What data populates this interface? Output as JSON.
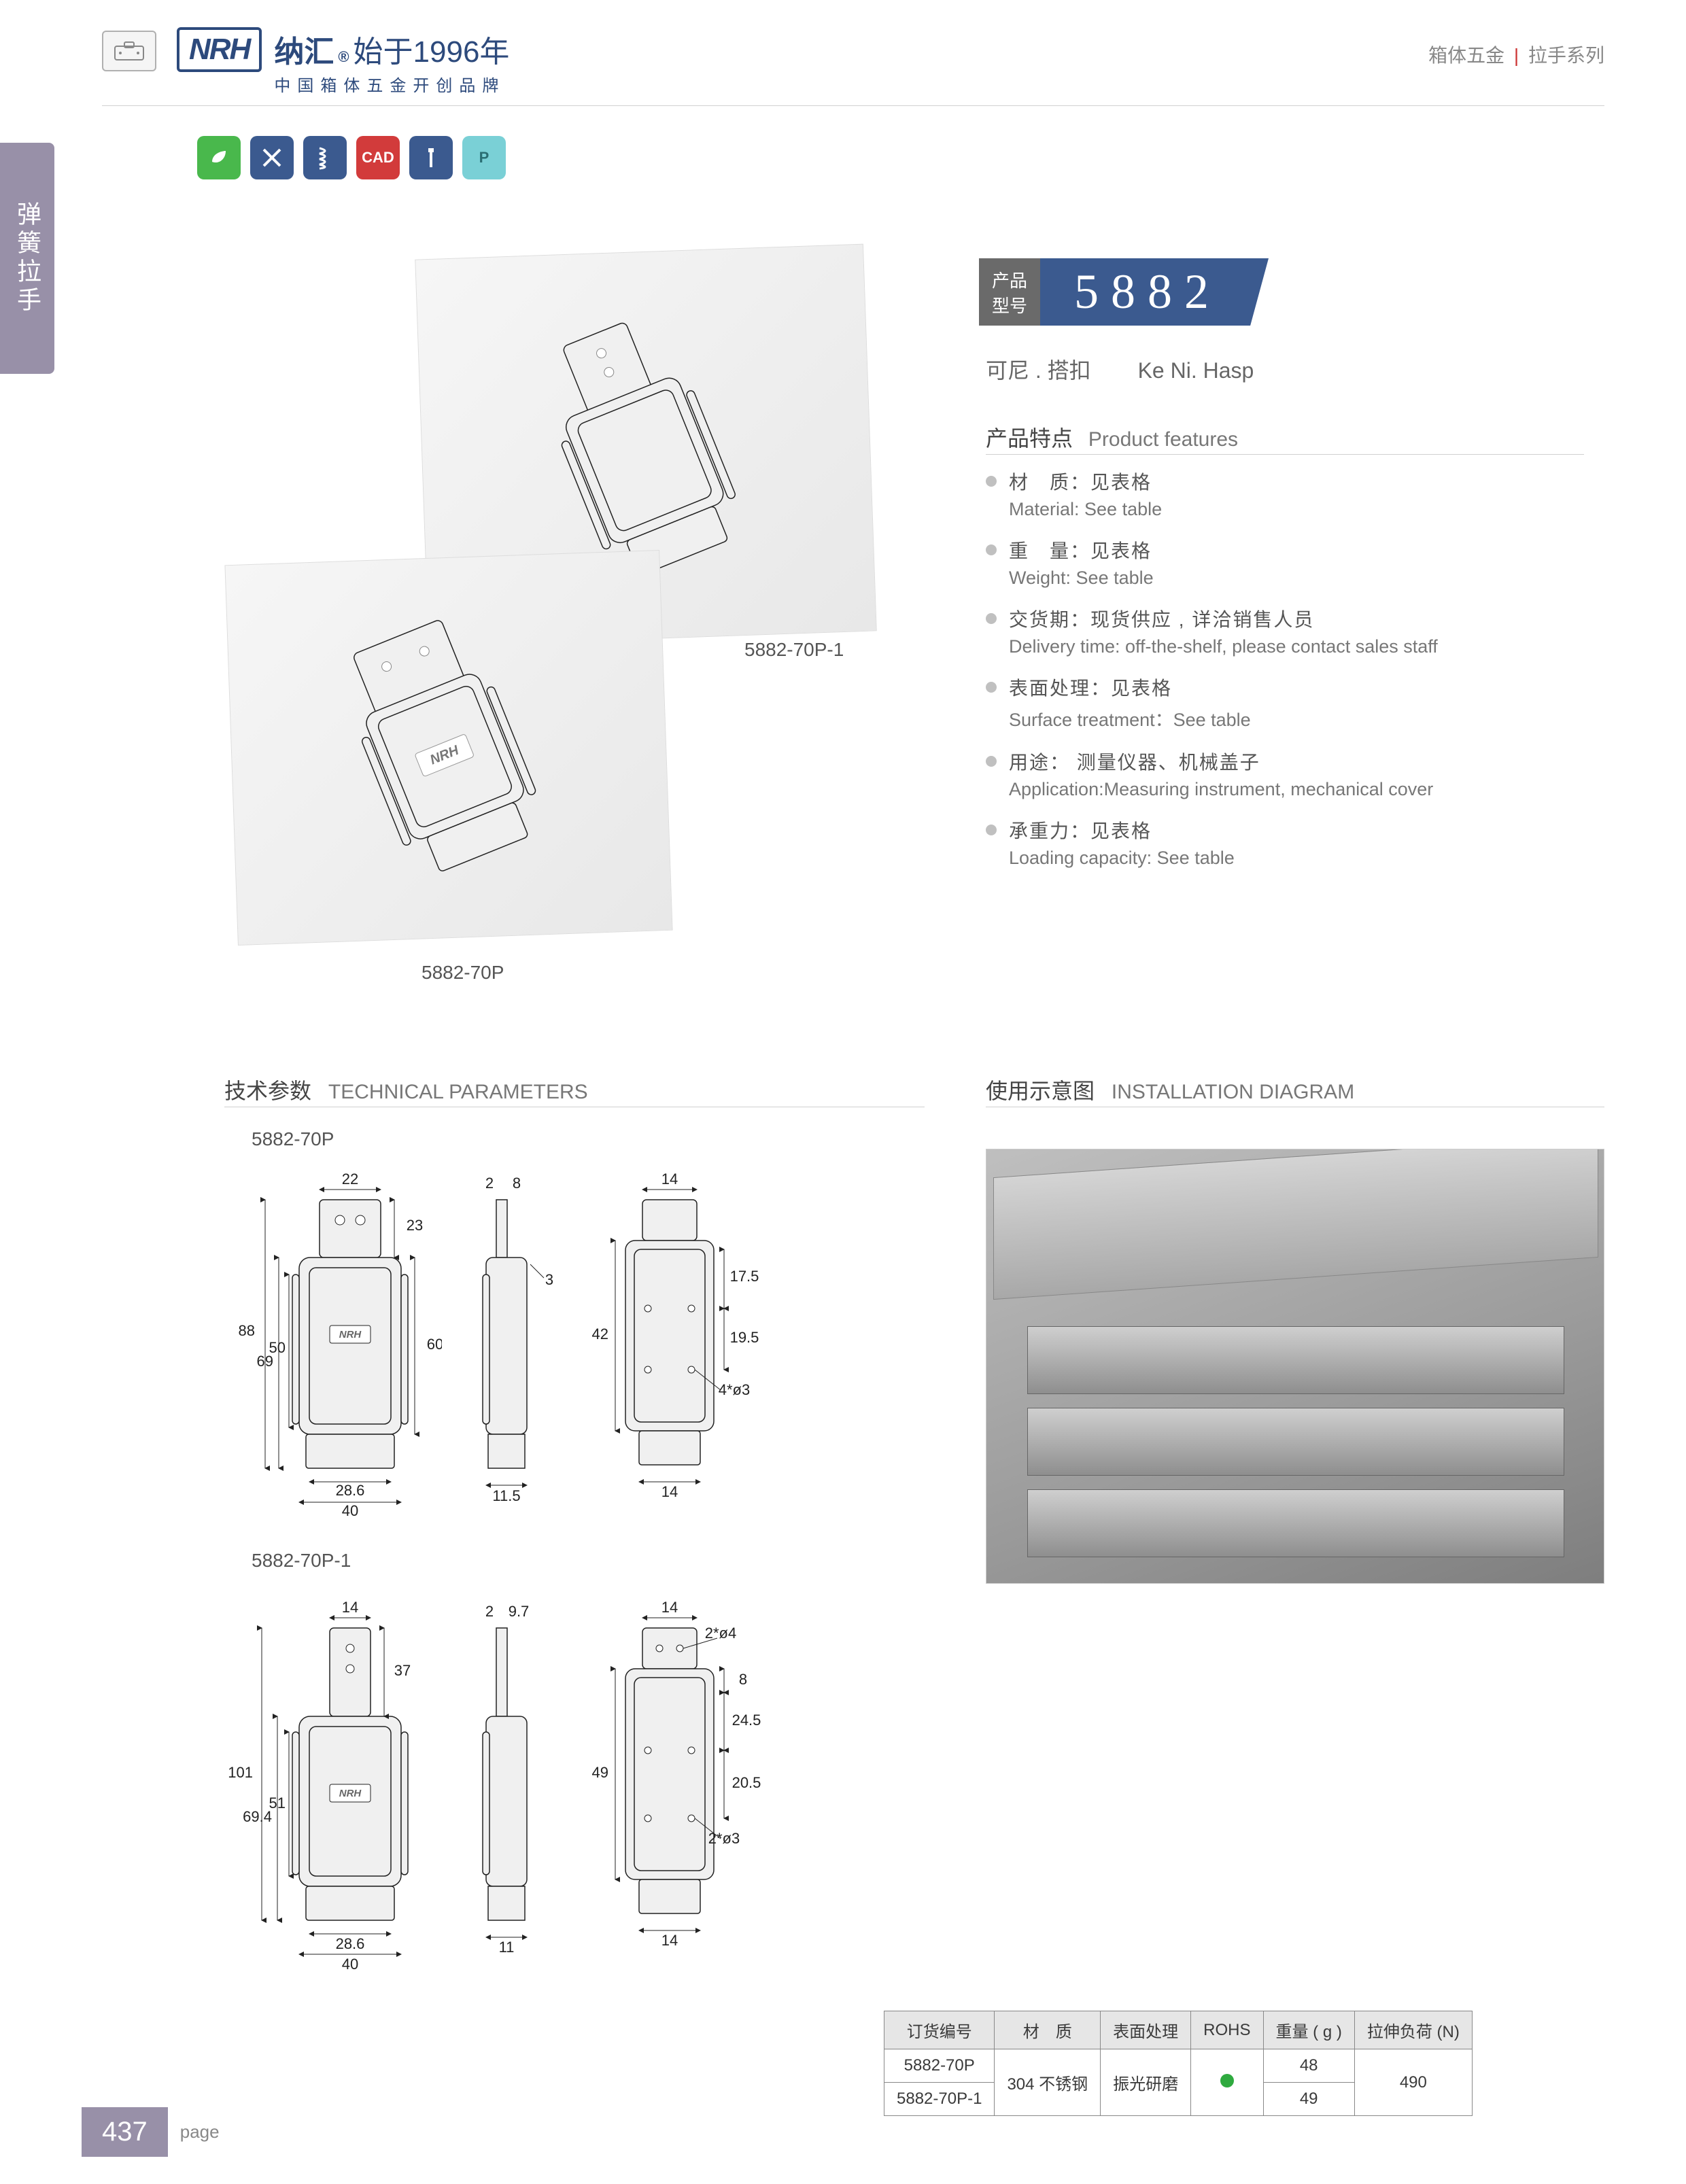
{
  "header": {
    "logo_text": "NRH",
    "brand_zh_1": "纳汇",
    "brand_zh_2": "始于1996年",
    "brand_sub": "中国箱体五金开创品牌",
    "right_1": "箱体五金",
    "right_sep": "|",
    "right_2": "拉手系列"
  },
  "side_tab": "弹簧拉手",
  "mini_icons": [
    {
      "bg": "#49b84c",
      "label": ""
    },
    {
      "bg": "#3b5a8f",
      "label": ""
    },
    {
      "bg": "#3b5a8f",
      "label": ""
    },
    {
      "bg": "#d23b3b",
      "label": "CAD"
    },
    {
      "bg": "#3b5a8f",
      "label": ""
    },
    {
      "bg": "#7ad0d6",
      "label": "P"
    }
  ],
  "product": {
    "badge_label_1": "产品",
    "badge_label_2": "型号",
    "number": "5882",
    "name_zh": "可尼 . 搭扣",
    "name_en": "Ke Ni. Hasp"
  },
  "images": {
    "img1_caption": "5882-70P-1",
    "img2_caption": "5882-70P"
  },
  "features_title": {
    "zh": "产品特点",
    "en": "Product features"
  },
  "features": [
    {
      "zh": "材　质：见表格",
      "en": "Material: See table"
    },
    {
      "zh": "重　量：见表格",
      "en": "Weight: See table"
    },
    {
      "zh": "交货期：现货供应 , 详洽销售人员",
      "en": "Delivery time: off-the-shelf, please contact sales staff"
    },
    {
      "zh": "表面处理：见表格",
      "en": "Surface treatment：See table"
    },
    {
      "zh": "用途： 测量仪器、机械盖子",
      "en": "Application:Measuring instrument, mechanical cover"
    },
    {
      "zh": "承重力：见表格",
      "en": "Loading capacity: See table"
    }
  ],
  "tech_title": {
    "zh": "技术参数",
    "en": "TECHNICAL PARAMETERS"
  },
  "install_title": {
    "zh": "使用示意图",
    "en": "INSTALLATION DIAGRAM"
  },
  "drawings": {
    "variant1": {
      "label": "5882-70P",
      "front": {
        "w_top": "22",
        "h_total": "88",
        "h_upper": "69",
        "h_mid": "50",
        "h_lower": "60",
        "w_bottom_inner": "28.6",
        "w_bottom": "40",
        "h_tab": "23"
      },
      "side": {
        "w_top": "2",
        "w_top2": "8",
        "w_bottom": "11.5",
        "gap": "3"
      },
      "back": {
        "w_top": "14",
        "h_total": "42",
        "h_upper": "17.5",
        "h_mid": "19.5",
        "w_bottom": "14",
        "hole": "4*ø3"
      }
    },
    "variant2": {
      "label": "5882-70P-1",
      "front": {
        "w_top": "14",
        "h_total": "101",
        "h_upper": "69.4",
        "h_mid": "51",
        "w_bottom_inner": "28.6",
        "w_bottom": "40",
        "h_tab": "37"
      },
      "side": {
        "w_top": "2",
        "w_top2": "9.7",
        "w_bottom": "11"
      },
      "back": {
        "w_top": "14",
        "h_total": "49",
        "h_upper": "24.5",
        "h_mid": "20.5",
        "h_top": "8",
        "w_bottom": "14",
        "hole_top": "2*ø4",
        "hole_bot": "2*ø3"
      }
    }
  },
  "table": {
    "headers": [
      "订货编号",
      "材　质",
      "表面处理",
      "ROHS",
      "重量 ( g )",
      "拉伸负荷 (N)"
    ],
    "material": "304 不锈钢",
    "surface": "振光研磨",
    "load": "490",
    "rows": [
      {
        "code": "5882-70P",
        "weight": "48"
      },
      {
        "code": "5882-70P-1",
        "weight": "49"
      }
    ]
  },
  "footer": {
    "page": "437",
    "label": "page"
  },
  "colors": {
    "brand_blue": "#2d4a7c",
    "badge_blue": "#3b5a8f",
    "badge_grey": "#6a6a6a",
    "side_purple": "#9890a8",
    "line_grey": "#d0d0d0",
    "rohs_green": "#2faa3f"
  }
}
